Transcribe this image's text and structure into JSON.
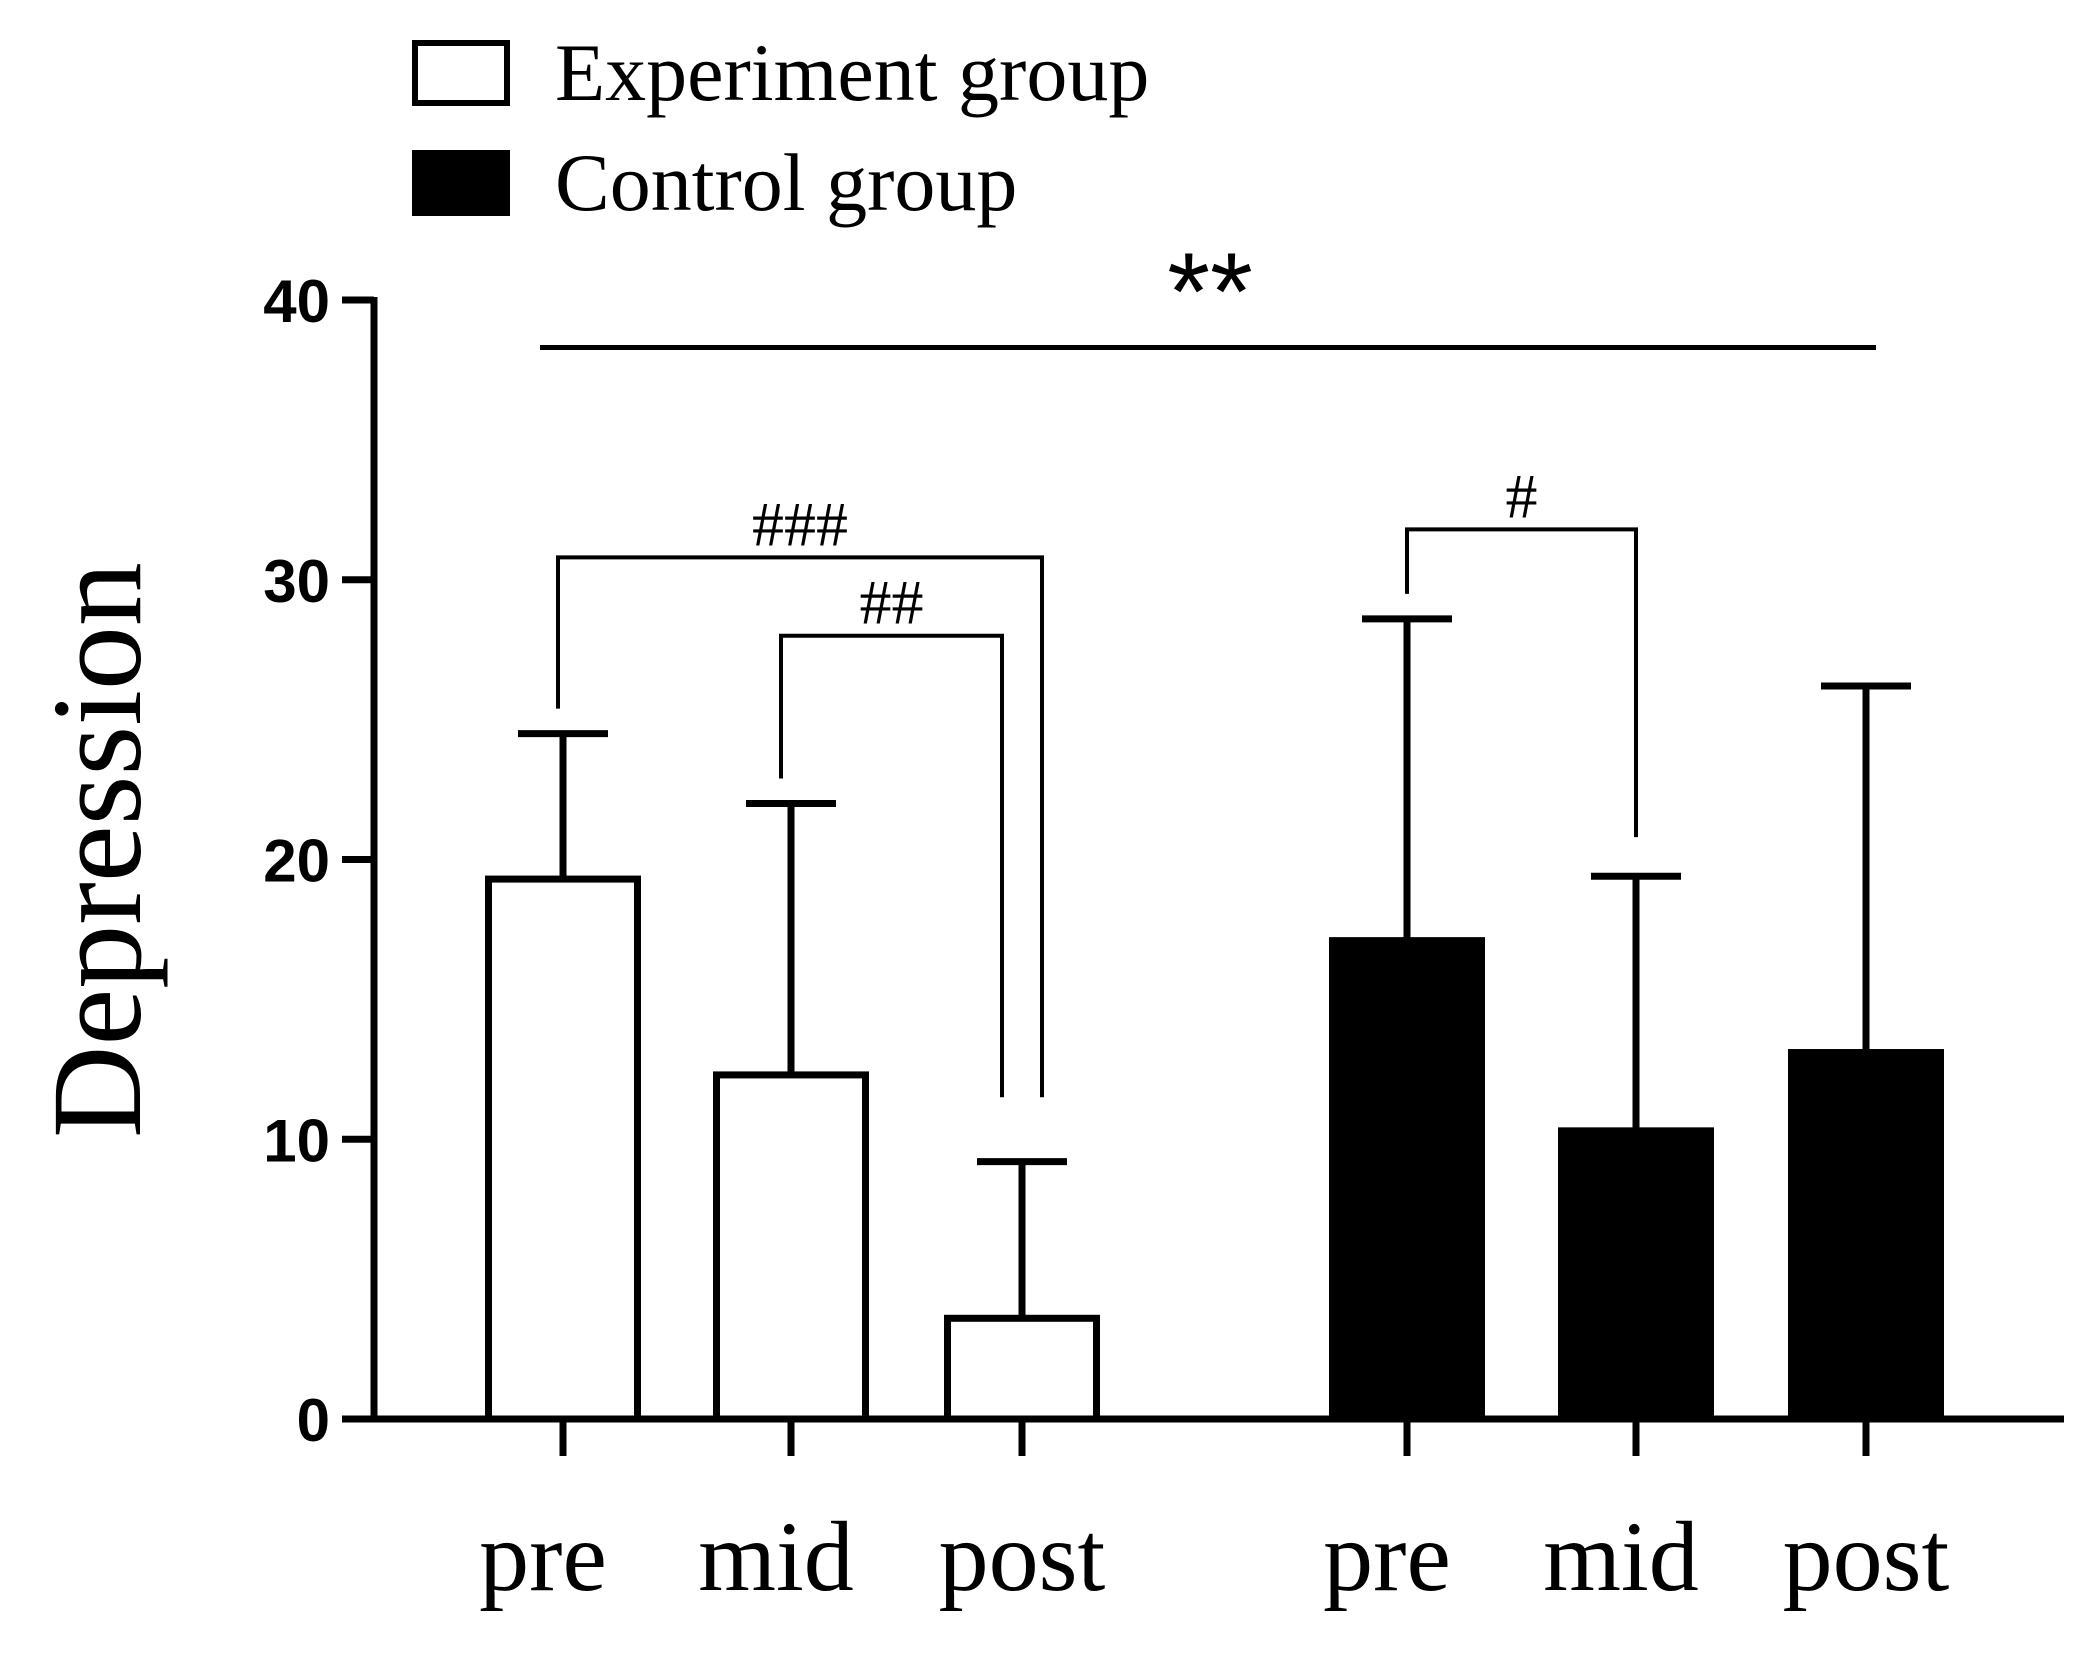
{
  "chart_data": {
    "type": "bar",
    "title": "",
    "xlabel": "",
    "ylabel": "Depression",
    "ylim": [
      0,
      40
    ],
    "yticks": [
      "0",
      "10",
      "20",
      "30",
      "40"
    ],
    "categories": [
      "pre",
      "mid",
      "post"
    ],
    "series": [
      {
        "name": "Experiment group",
        "fill": "#ffffff",
        "stroke": "#000000",
        "values": [
          19.3,
          12.3,
          3.6
        ],
        "errors_upper": [
          24.5,
          22.0,
          9.2
        ]
      },
      {
        "name": "Control group",
        "fill": "#000000",
        "stroke": "#000000",
        "values": [
          17.1,
          10.3,
          13.1
        ],
        "errors_upper": [
          28.6,
          19.4,
          26.2
        ]
      }
    ],
    "legend_position": "top-left",
    "significance": [
      {
        "label": "**",
        "scope": "Experiment group vs Control group",
        "level": 38.3
      },
      {
        "label": "###",
        "series": 0,
        "from": "pre",
        "to": "post",
        "level": 30.8
      },
      {
        "label": "##",
        "series": 0,
        "from": "mid",
        "to": "post",
        "level": 28.0
      },
      {
        "label": "#",
        "series": 1,
        "from": "pre",
        "to": "mid",
        "level": 31.8
      }
    ]
  }
}
